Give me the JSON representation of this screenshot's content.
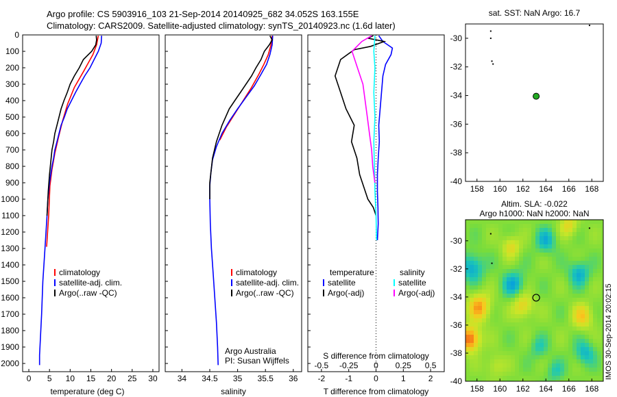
{
  "header": {
    "title_line1": "Argo profile: CS 5903916_103 21-Sep-2014 20140925_682 34.052S 163.155E",
    "title_line2": "Climatology: CARS2009. Satellite-adjusted climatology: synTS_20140923.nc (1.6d later)"
  },
  "footer": {
    "stamp": "IMOS 30-Sep-2014 20:02:15"
  },
  "colors": {
    "climatology": "#ff0000",
    "satellite": "#0000ff",
    "argo": "#000000",
    "salinity_satellite": "#00ffff",
    "salinity_argo": "#ff00ff",
    "float_marker": "#22aa22"
  },
  "chart_data": [
    {
      "id": "temperature",
      "type": "line",
      "xlabel": "temperature (deg C)",
      "ylabel": "",
      "xlim": [
        -1.5,
        31.5
      ],
      "ylim": [
        2050,
        0
      ],
      "xticks": [
        0,
        5,
        10,
        15,
        20,
        25,
        30
      ],
      "xtick_labels": [
        "0",
        "5",
        "10",
        "15",
        "20",
        "25",
        "30"
      ],
      "yticks": [
        0,
        100,
        200,
        300,
        400,
        500,
        600,
        700,
        800,
        900,
        1000,
        1100,
        1200,
        1300,
        1400,
        1500,
        1600,
        1700,
        1800,
        1900,
        2000
      ],
      "ytick_labels": [
        "0",
        "100",
        "200",
        "300",
        "400",
        "500",
        "600",
        "700",
        "800",
        "900",
        "1000",
        "1100",
        "1200",
        "1300",
        "1400",
        "1500",
        "1600",
        "1700",
        "1800",
        "1900",
        "2000"
      ],
      "legend": [
        "climatology",
        "satellite-adj. clim.",
        "Argo(..raw -QC)"
      ],
      "series": [
        {
          "name": "climatology",
          "color": "#ff0000",
          "x": [
            16.8,
            16.4,
            15.5,
            13.3,
            11.0,
            9.4,
            8.2,
            7.2,
            6.3,
            5.6,
            5.1,
            4.8,
            4.3
          ],
          "y": [
            5,
            60,
            120,
            220,
            320,
            420,
            520,
            620,
            720,
            820,
            920,
            1100,
            1290
          ]
        },
        {
          "name": "satellite-adj. clim.",
          "color": "#0000ff",
          "x": [
            17.6,
            17.5,
            16.8,
            15.8,
            14.8,
            13.5,
            12.4,
            11.3,
            10.3,
            9.3,
            8.6,
            7.8,
            7.3,
            6.8,
            6.3,
            6.0,
            5.6,
            5.3,
            5.0,
            4.6,
            4.4,
            3.9,
            3.4,
            3.1,
            2.8,
            2.6,
            2.6
          ],
          "y": [
            5,
            50,
            100,
            150,
            200,
            250,
            300,
            350,
            400,
            450,
            500,
            550,
            600,
            650,
            700,
            750,
            800,
            850,
            900,
            1000,
            1100,
            1300,
            1500,
            1700,
            1850,
            1950,
            2010
          ]
        },
        {
          "name": "Argo(..raw -QC)",
          "color": "#000000",
          "x": [
            16.3,
            16.4,
            16.2,
            15.2,
            13.2,
            12.2,
            11.0,
            10.0,
            9.3,
            8.5,
            7.8,
            7.3,
            6.8,
            6.3,
            6.0,
            5.6,
            5.4,
            5.2,
            5.0,
            4.7,
            4.4
          ],
          "y": [
            5,
            30,
            60,
            100,
            150,
            200,
            250,
            300,
            350,
            400,
            450,
            500,
            550,
            600,
            650,
            700,
            750,
            800,
            850,
            950,
            1100
          ]
        }
      ]
    },
    {
      "id": "salinity",
      "type": "line",
      "xlabel": "salinity",
      "xlim": [
        33.7,
        36.15
      ],
      "ylim": [
        2050,
        0
      ],
      "xticks": [
        34,
        34.5,
        35,
        35.5,
        36
      ],
      "xtick_labels": [
        "34",
        "34.5",
        "35",
        "35.5",
        "36"
      ],
      "legend": [
        "climatology",
        "satellite-adj. clim.",
        "Argo(..raw -QC)"
      ],
      "annotation_line1": "Argo Australia",
      "annotation_line2": "PI: Susan Wijffels",
      "series": [
        {
          "name": "climatology",
          "color": "#ff0000",
          "x": [
            35.62,
            35.6,
            35.55,
            35.47,
            35.38,
            35.25,
            35.1,
            34.95,
            34.8,
            34.68
          ],
          "y": [
            5,
            60,
            120,
            180,
            240,
            320,
            400,
            480,
            560,
            640
          ]
        },
        {
          "name": "satellite-adj. clim.",
          "color": "#0000ff",
          "x": [
            35.63,
            35.62,
            35.58,
            35.52,
            35.42,
            35.3,
            35.15,
            35.0,
            34.86,
            34.72,
            34.62,
            34.55,
            34.52,
            34.5,
            34.5,
            34.51,
            34.53,
            34.56,
            34.59,
            34.62,
            34.64,
            34.65
          ],
          "y": [
            5,
            60,
            120,
            180,
            240,
            310,
            380,
            450,
            520,
            600,
            680,
            760,
            840,
            920,
            1000,
            1150,
            1300,
            1450,
            1600,
            1750,
            1900,
            2010
          ]
        },
        {
          "name": "Argo(..raw -QC)",
          "color": "#000000",
          "x": [
            35.58,
            35.62,
            35.57,
            35.48,
            35.42,
            35.33,
            35.25,
            35.15,
            35.05,
            34.95,
            34.85,
            34.72,
            34.62,
            34.55,
            34.5,
            34.5
          ],
          "y": [
            5,
            30,
            60,
            100,
            150,
            200,
            250,
            300,
            350,
            400,
            450,
            550,
            650,
            750,
            900,
            1000
          ]
        }
      ]
    },
    {
      "id": "difference",
      "type": "line",
      "xlabel": "T difference from climatology",
      "xlabel_top": "S difference from climatology",
      "xlim": [
        -2.5,
        2.5
      ],
      "ylim": [
        2050,
        0
      ],
      "xticks": [
        -2,
        -1,
        0,
        1,
        2
      ],
      "xtick_labels": [
        "-2",
        "-1",
        "0",
        "1",
        "2"
      ],
      "xticks_secondary": [
        -0.5,
        -0.25,
        0,
        0.25,
        0.5
      ],
      "xtick_labels_secondary": [
        "-0.5",
        "-0.25",
        "0",
        "0.25",
        "0.5"
      ],
      "legend_temperature_title": "temperature",
      "legend_salinity_title": "salinity",
      "legend_temperature": [
        "satellite",
        "Argo(-adj)"
      ],
      "legend_salinity": [
        "satellite",
        "Argo(-adj)"
      ],
      "series": [
        {
          "name": "temperature satellite",
          "color": "#0000ff",
          "x": [
            0.1,
            0.25,
            0.6,
            0.55,
            0.35,
            0.25,
            0.2,
            0.15,
            0.1,
            0.12,
            0.08,
            0.05,
            0.05,
            0.07,
            0.08,
            0.05
          ],
          "y": [
            5,
            40,
            80,
            120,
            180,
            250,
            350,
            450,
            550,
            650,
            750,
            850,
            950,
            1050,
            1150,
            1250
          ]
        },
        {
          "name": "temperature Argo(-adj)",
          "color": "#000000",
          "x": [
            -0.1,
            -0.3,
            0.3,
            -0.2,
            -0.8,
            -1.3,
            -1.5,
            -1.3,
            -1.1,
            -0.8,
            -0.9,
            -0.7,
            -0.6,
            -0.4,
            -0.3,
            -0.1,
            0.0
          ],
          "y": [
            5,
            20,
            40,
            70,
            90,
            150,
            250,
            350,
            450,
            550,
            650,
            750,
            850,
            950,
            1000,
            1050,
            1100
          ]
        },
        {
          "name": "salinity satellite",
          "color": "#00ffff",
          "x": [
            -0.01,
            -0.02,
            -0.01,
            -0.02,
            -0.01,
            -0.02,
            -0.015,
            -0.01,
            0.0,
            0.005
          ],
          "y": [
            5,
            100,
            200,
            350,
            500,
            650,
            800,
            950,
            1100,
            1250
          ]
        },
        {
          "name": "salinity Argo(-adj)",
          "color": "#ff00ff",
          "x": [
            -0.04,
            -0.13,
            -0.22,
            -0.17,
            -0.12,
            -0.1,
            -0.08,
            -0.06,
            -0.04,
            -0.03,
            -0.01
          ],
          "y": [
            5,
            40,
            100,
            200,
            300,
            400,
            500,
            600,
            700,
            800,
            900
          ]
        }
      ]
    },
    {
      "id": "location",
      "type": "scatter",
      "title": "sat. SST: NaN Argo: 16.7",
      "xlim": [
        157,
        169
      ],
      "ylim": [
        -40,
        -29
      ],
      "xticks": [
        158,
        160,
        162,
        164,
        166,
        168
      ],
      "xtick_labels": [
        "158",
        "160",
        "162",
        "164",
        "166",
        "168"
      ],
      "yticks": [
        -30,
        -32,
        -34,
        -36,
        -38,
        -40
      ],
      "ytick_labels": [
        "-30",
        "-32",
        "-34",
        "-36",
        "-38",
        "-40"
      ],
      "points": [
        {
          "x": 159.2,
          "y": -29.5
        },
        {
          "x": 159.2,
          "y": -30.0
        },
        {
          "x": 159.3,
          "y": -31.6
        },
        {
          "x": 159.4,
          "y": -31.8
        },
        {
          "x": 167.8,
          "y": -29.1
        }
      ],
      "float": {
        "x": 163.155,
        "y": -34.052
      }
    },
    {
      "id": "altimetry",
      "type": "heatmap",
      "title_line1": "Altim. SLA: -0.022",
      "title_line2": "Argo h1000: NaN h2000: NaN",
      "xlim": [
        157,
        169
      ],
      "ylim": [
        -40,
        -28.5
      ],
      "xticks": [
        158,
        160,
        162,
        164,
        166,
        168
      ],
      "xtick_labels": [
        "158",
        "160",
        "162",
        "164",
        "166",
        "168"
      ],
      "yticks": [
        -30,
        -32,
        -34,
        -36,
        -38,
        -40
      ],
      "ytick_labels": [
        "-30",
        "-32",
        "-34",
        "-36",
        "-38",
        "-40"
      ],
      "blobs": [
        {
          "lon": 157.4,
          "lat": -37.0,
          "v": 0.95,
          "r": 0.9
        },
        {
          "lon": 158.2,
          "lat": -34.7,
          "v": 0.7,
          "r": 1.0
        },
        {
          "lon": 162.0,
          "lat": -34.6,
          "v": 0.55,
          "r": 0.9
        },
        {
          "lon": 167.2,
          "lat": -35.4,
          "v": 0.55,
          "r": 0.9
        },
        {
          "lon": 161.0,
          "lat": -30.4,
          "v": 0.45,
          "r": 0.8
        },
        {
          "lon": 166.0,
          "lat": -28.9,
          "v": 0.45,
          "r": 0.8
        },
        {
          "lon": 157.6,
          "lat": -31.9,
          "v": -0.55,
          "r": 1.0
        },
        {
          "lon": 161.2,
          "lat": -33.1,
          "v": -0.5,
          "r": 1.0
        },
        {
          "lon": 164.0,
          "lat": -30.0,
          "v": -0.45,
          "r": 0.9
        },
        {
          "lon": 166.9,
          "lat": -32.3,
          "v": -0.5,
          "r": 0.9
        },
        {
          "lon": 167.4,
          "lat": -38.0,
          "v": -0.45,
          "r": 0.9
        },
        {
          "lon": 163.4,
          "lat": -37.6,
          "v": -0.3,
          "r": 0.8
        },
        {
          "lon": 159.6,
          "lat": -38.9,
          "v": 0.3,
          "r": 0.8
        },
        {
          "lon": 164.8,
          "lat": -39.3,
          "v": -0.3,
          "r": 0.8
        }
      ],
      "points": [
        {
          "x": 159.2,
          "y": -29.5
        },
        {
          "x": 159.3,
          "y": -31.6
        },
        {
          "x": 167.8,
          "y": -29.1
        }
      ],
      "float": {
        "x": 163.155,
        "y": -34.052
      }
    }
  ]
}
